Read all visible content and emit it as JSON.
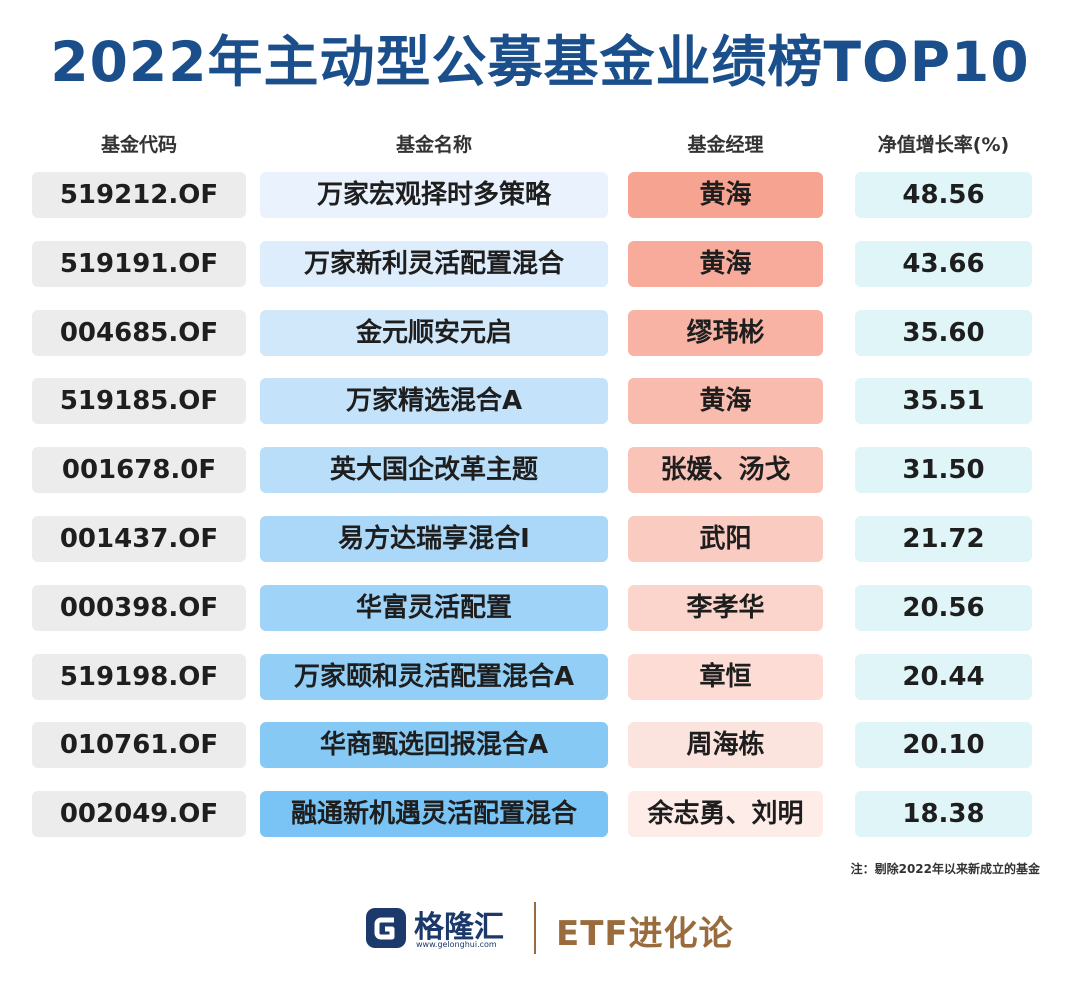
{
  "title": "2022年主动型公募基金业绩榜TOP10",
  "chart_data": {
    "type": "table",
    "columns": [
      "基金代码",
      "基金名称",
      "基金经理",
      "净值增长率(%)"
    ],
    "rows": [
      {
        "code": "519212.OF",
        "name": "万家宏观择时多策略",
        "manager": "黄海",
        "rate": "48.56"
      },
      {
        "code": "519191.OF",
        "name": "万家新利灵活配置混合",
        "manager": "黄海",
        "rate": "43.66"
      },
      {
        "code": "004685.OF",
        "name": "金元顺安元启",
        "manager": "缪玮彬",
        "rate": "35.60"
      },
      {
        "code": "519185.OF",
        "name": "万家精选混合A",
        "manager": "黄海",
        "rate": "35.51"
      },
      {
        "code": "001678.0F",
        "name": "英大国企改革主题",
        "manager": "张媛、汤戈",
        "rate": "31.50"
      },
      {
        "code": "001437.OF",
        "name": "易方达瑞享混合I",
        "manager": "武阳",
        "rate": "21.72"
      },
      {
        "code": "000398.OF",
        "name": "华富灵活配置",
        "manager": "李孝华",
        "rate": "20.56"
      },
      {
        "code": "519198.OF",
        "name": "万家颐和灵活配置混合A",
        "manager": "章恒",
        "rate": "20.44"
      },
      {
        "code": "010761.OF",
        "name": "华商甄选回报混合A",
        "manager": "周海栋",
        "rate": "20.10"
      },
      {
        "code": "002049.OF",
        "name": "融通新机遇灵活配置混合",
        "manager": "余志勇、刘明",
        "rate": "18.38"
      }
    ]
  },
  "colors": {
    "title": "#1b4f8c",
    "code_bg": "#ececec",
    "rate_bg": "#dff5f7",
    "name_bg_light": "#eaf2fd",
    "name_bg_dark": "#79c4f4",
    "manager_bg_dark": "#f7a391",
    "manager_bg_light": "#fdece8",
    "brand": "#9a6b3d"
  },
  "note": "注：剔除2022年以来新成立的基金",
  "footer": {
    "logo_text": "格隆汇",
    "logo_url": "www.gelonghui.com",
    "brand": "ETF进化论"
  }
}
